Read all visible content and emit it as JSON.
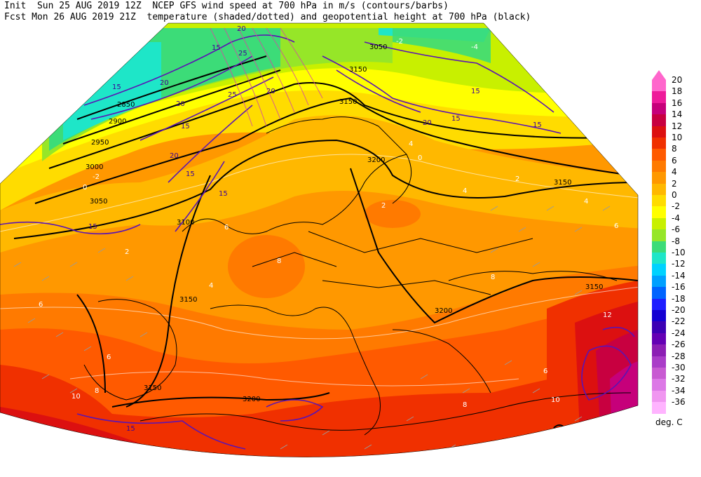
{
  "header": {
    "line1": "Init  Sun 25 AUG 2019 12Z  NCEP GFS wind speed at 700 hPa in m/s (contours/barbs)",
    "line2": "Fcst Mon 26 AUG 2019 21Z  temperature (shaded/dotted) and geopotential height at 700 hPa (black)"
  },
  "legend": {
    "units": "deg. C",
    "levels": [
      {
        "label": "20",
        "color": "#ff66cc"
      },
      {
        "label": "18",
        "color": "#ee1a9a"
      },
      {
        "label": "16",
        "color": "#c6007a"
      },
      {
        "label": "14",
        "color": "#c80040"
      },
      {
        "label": "12",
        "color": "#dc1010"
      },
      {
        "label": "10",
        "color": "#f03000"
      },
      {
        "label": "8",
        "color": "#ff5a00"
      },
      {
        "label": "6",
        "color": "#ff7a00"
      },
      {
        "label": "4",
        "color": "#ff9800"
      },
      {
        "label": "2",
        "color": "#ffb800"
      },
      {
        "label": "0",
        "color": "#ffdc00"
      },
      {
        "label": "-2",
        "color": "#ffff00"
      },
      {
        "label": "-4",
        "color": "#c8f000"
      },
      {
        "label": "-6",
        "color": "#96e628"
      },
      {
        "label": "-8",
        "color": "#3cdc78"
      },
      {
        "label": "-10",
        "color": "#1ee6c8"
      },
      {
        "label": "-12",
        "color": "#00d2ff"
      },
      {
        "label": "-14",
        "color": "#00a0ff"
      },
      {
        "label": "-16",
        "color": "#0064ff"
      },
      {
        "label": "-18",
        "color": "#1e1eff"
      },
      {
        "label": "-20",
        "color": "#1400d2"
      },
      {
        "label": "-22",
        "color": "#3c00b4"
      },
      {
        "label": "-24",
        "color": "#6400b4"
      },
      {
        "label": "-26",
        "color": "#8c1eb4"
      },
      {
        "label": "-28",
        "color": "#aa3cc8"
      },
      {
        "label": "-30",
        "color": "#c85ad2"
      },
      {
        "label": "-32",
        "color": "#dc78e6"
      },
      {
        "label": "-34",
        "color": "#f096f0"
      },
      {
        "label": "-36",
        "color": "#ffb4ff"
      }
    ]
  },
  "map": {
    "height_labels": [
      "2850",
      "2900",
      "2950",
      "3000",
      "3050",
      "3100",
      "3150",
      "3200",
      "3150",
      "3200",
      "3150",
      "3150",
      "3200",
      "3050",
      "3150",
      "3150"
    ],
    "wind_labels": [
      "20",
      "15",
      "25",
      "20",
      "20",
      "15",
      "25",
      "20",
      "15",
      "20",
      "15",
      "15",
      "15",
      "20",
      "15",
      "15",
      "15",
      "15"
    ],
    "temp_labels": [
      "-2",
      "0",
      "2",
      "4",
      "6",
      "8",
      "4",
      "6",
      "2",
      "4",
      "6",
      "8",
      "6",
      "8",
      "10",
      "12",
      "10",
      "8",
      "6",
      "4",
      "2",
      "0",
      "-4",
      "-2"
    ]
  }
}
